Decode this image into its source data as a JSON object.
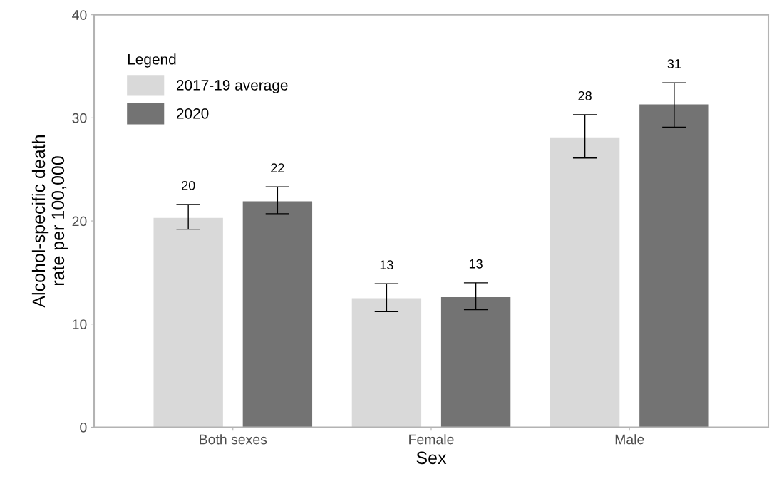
{
  "chart_data": {
    "type": "bar",
    "xlabel": "Sex",
    "ylabel": "Alcohol-specific death\nrate per 100,000",
    "legend_title": "Legend",
    "categories": [
      "Both sexes",
      "Female",
      "Male"
    ],
    "series": [
      {
        "name": "2017-19 average",
        "color": "#d9d9d9",
        "values": [
          20.3,
          12.5,
          28.1
        ],
        "errors": [
          [
            19.2,
            21.6
          ],
          [
            11.2,
            13.9
          ],
          [
            26.1,
            30.3
          ]
        ],
        "value_labels": [
          "20",
          "13",
          "28"
        ]
      },
      {
        "name": "2020",
        "color": "#737373",
        "values": [
          21.9,
          12.6,
          31.3
        ],
        "errors": [
          [
            20.7,
            23.3
          ],
          [
            11.4,
            14.0
          ],
          [
            29.1,
            33.4
          ]
        ],
        "value_labels": [
          "22",
          "13",
          "31"
        ]
      }
    ],
    "ylim": [
      0,
      40
    ],
    "yticks": [
      0,
      10,
      20,
      30,
      40
    ],
    "grid": false,
    "legend": "top left"
  }
}
